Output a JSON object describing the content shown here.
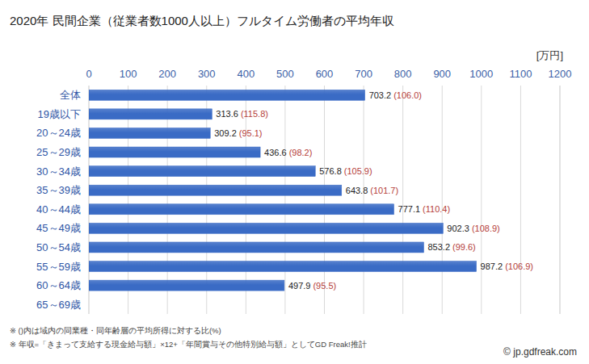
{
  "chart_data": {
    "type": "bar",
    "orientation": "horizontal",
    "title": "2020年 民間企業（従業者数1000人以上）フルタイム労働者の平均年収",
    "xlabel": "[万円]",
    "categories": [
      "全体",
      "19歳以下",
      "20～24歳",
      "25～29歳",
      "30～34歳",
      "35～39歳",
      "40～44歳",
      "45～49歳",
      "50～54歳",
      "55～59歳",
      "60～64歳",
      "65～69歳"
    ],
    "values": [
      703.2,
      313.6,
      309.2,
      436.6,
      576.8,
      643.8,
      777.1,
      902.3,
      853.2,
      987.2,
      497.9,
      null
    ],
    "ratio_labels": [
      "(106.0)",
      "(115.8)",
      "(95.1)",
      "(98.2)",
      "(105.9)",
      "(101.7)",
      "(110.4)",
      "(108.9)",
      "(99.6)",
      "(106.9)",
      "(95.5)",
      null
    ],
    "color": "#3a6bc5",
    "xlim": [
      0,
      1200
    ],
    "xticks": [
      0,
      100,
      200,
      300,
      400,
      500,
      600,
      700,
      800,
      900,
      1000,
      1100,
      1200
    ],
    "grid": true,
    "data_labels": true,
    "notes": [
      "※ ()内は域内の同業種・同年齢層の平均所得に対する比(%)",
      "※ 年収=「きまって支給する現金給与額」×12+「年間賞与その他特別給与額」としてGD Freak!推計"
    ],
    "source": "© jp.gdfreak.com"
  }
}
